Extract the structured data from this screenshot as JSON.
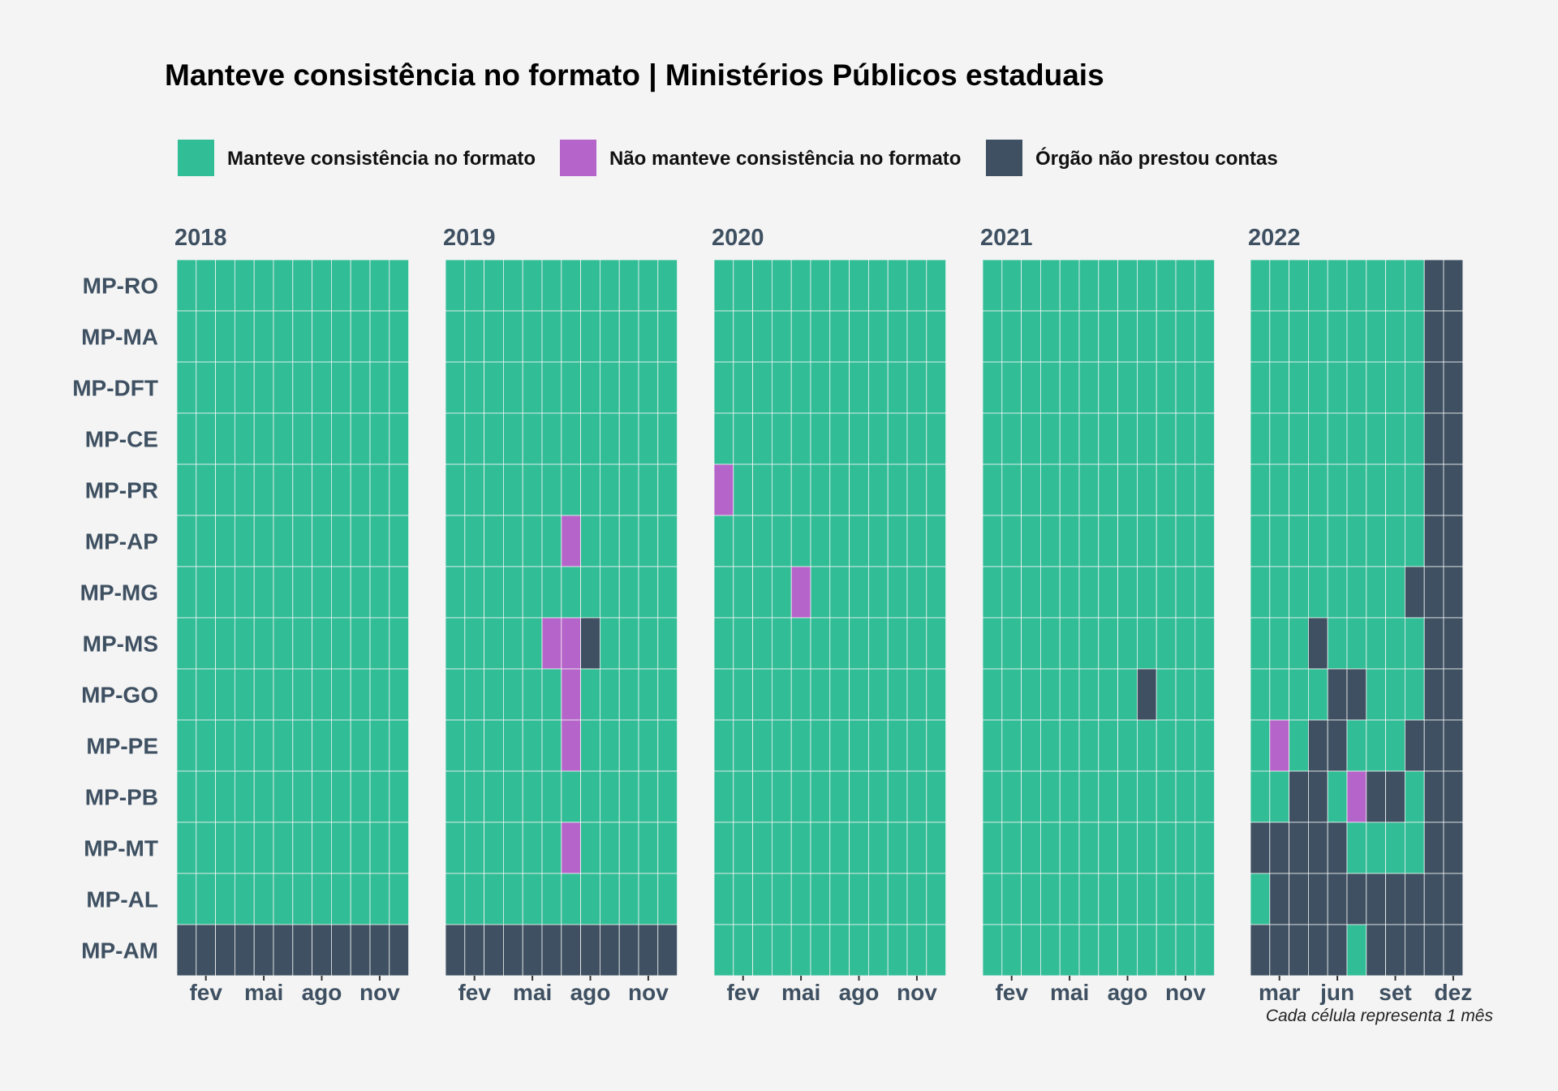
{
  "colors": {
    "background": "#f4f4f4",
    "status_0": "#31bd96",
    "status_1": "#b564c9",
    "status_2": "#3e5061",
    "axis_text": "#3e5061",
    "cell_border": "#f4f4f4"
  },
  "legend": [
    {
      "label": "Manteve consistência no formato",
      "color": "#31bd96"
    },
    {
      "label": "Não manteve consistência no formato",
      "color": "#b564c9"
    },
    {
      "label": "Órgão não prestou contas",
      "color": "#3e5061"
    }
  ],
  "caption": "Cada célula representa 1 mês",
  "chart_data": {
    "type": "heatmap",
    "title": "Manteve consistência no formato | Ministérios Públicos estaduais",
    "status_labels": [
      "Manteve consistência no formato",
      "Não manteve consistência no formato",
      "Órgão não prestou contas"
    ],
    "rows": [
      "MP-RO",
      "MP-MA",
      "MP-DFT",
      "MP-CE",
      "MP-PR",
      "MP-AP",
      "MP-MG",
      "MP-MS",
      "MP-GO",
      "MP-PE",
      "MP-PB",
      "MP-MT",
      "MP-AL",
      "MP-AM"
    ],
    "panels": [
      {
        "year": "2018",
        "tick_labels": [
          "fev",
          "mai",
          "ago",
          "nov"
        ],
        "tick_months": [
          2,
          5,
          8,
          11
        ],
        "matrix": [
          [
            0,
            0,
            0,
            0,
            0,
            0,
            0,
            0,
            0,
            0,
            0,
            0
          ],
          [
            0,
            0,
            0,
            0,
            0,
            0,
            0,
            0,
            0,
            0,
            0,
            0
          ],
          [
            0,
            0,
            0,
            0,
            0,
            0,
            0,
            0,
            0,
            0,
            0,
            0
          ],
          [
            0,
            0,
            0,
            0,
            0,
            0,
            0,
            0,
            0,
            0,
            0,
            0
          ],
          [
            0,
            0,
            0,
            0,
            0,
            0,
            0,
            0,
            0,
            0,
            0,
            0
          ],
          [
            0,
            0,
            0,
            0,
            0,
            0,
            0,
            0,
            0,
            0,
            0,
            0
          ],
          [
            0,
            0,
            0,
            0,
            0,
            0,
            0,
            0,
            0,
            0,
            0,
            0
          ],
          [
            0,
            0,
            0,
            0,
            0,
            0,
            0,
            0,
            0,
            0,
            0,
            0
          ],
          [
            0,
            0,
            0,
            0,
            0,
            0,
            0,
            0,
            0,
            0,
            0,
            0
          ],
          [
            0,
            0,
            0,
            0,
            0,
            0,
            0,
            0,
            0,
            0,
            0,
            0
          ],
          [
            0,
            0,
            0,
            0,
            0,
            0,
            0,
            0,
            0,
            0,
            0,
            0
          ],
          [
            0,
            0,
            0,
            0,
            0,
            0,
            0,
            0,
            0,
            0,
            0,
            0
          ],
          [
            0,
            0,
            0,
            0,
            0,
            0,
            0,
            0,
            0,
            0,
            0,
            0
          ],
          [
            2,
            2,
            2,
            2,
            2,
            2,
            2,
            2,
            2,
            2,
            2,
            2
          ]
        ]
      },
      {
        "year": "2019",
        "tick_labels": [
          "fev",
          "mai",
          "ago",
          "nov"
        ],
        "tick_months": [
          2,
          5,
          8,
          11
        ],
        "matrix": [
          [
            0,
            0,
            0,
            0,
            0,
            0,
            0,
            0,
            0,
            0,
            0,
            0
          ],
          [
            0,
            0,
            0,
            0,
            0,
            0,
            0,
            0,
            0,
            0,
            0,
            0
          ],
          [
            0,
            0,
            0,
            0,
            0,
            0,
            0,
            0,
            0,
            0,
            0,
            0
          ],
          [
            0,
            0,
            0,
            0,
            0,
            0,
            0,
            0,
            0,
            0,
            0,
            0
          ],
          [
            0,
            0,
            0,
            0,
            0,
            0,
            0,
            0,
            0,
            0,
            0,
            0
          ],
          [
            0,
            0,
            0,
            0,
            0,
            0,
            1,
            0,
            0,
            0,
            0,
            0
          ],
          [
            0,
            0,
            0,
            0,
            0,
            0,
            0,
            0,
            0,
            0,
            0,
            0
          ],
          [
            0,
            0,
            0,
            0,
            0,
            1,
            1,
            2,
            0,
            0,
            0,
            0
          ],
          [
            0,
            0,
            0,
            0,
            0,
            0,
            1,
            0,
            0,
            0,
            0,
            0
          ],
          [
            0,
            0,
            0,
            0,
            0,
            0,
            1,
            0,
            0,
            0,
            0,
            0
          ],
          [
            0,
            0,
            0,
            0,
            0,
            0,
            0,
            0,
            0,
            0,
            0,
            0
          ],
          [
            0,
            0,
            0,
            0,
            0,
            0,
            1,
            0,
            0,
            0,
            0,
            0
          ],
          [
            0,
            0,
            0,
            0,
            0,
            0,
            0,
            0,
            0,
            0,
            0,
            0
          ],
          [
            2,
            2,
            2,
            2,
            2,
            2,
            2,
            2,
            2,
            2,
            2,
            2
          ]
        ]
      },
      {
        "year": "2020",
        "tick_labels": [
          "fev",
          "mai",
          "ago",
          "nov"
        ],
        "tick_months": [
          2,
          5,
          8,
          11
        ],
        "matrix": [
          [
            0,
            0,
            0,
            0,
            0,
            0,
            0,
            0,
            0,
            0,
            0,
            0
          ],
          [
            0,
            0,
            0,
            0,
            0,
            0,
            0,
            0,
            0,
            0,
            0,
            0
          ],
          [
            0,
            0,
            0,
            0,
            0,
            0,
            0,
            0,
            0,
            0,
            0,
            0
          ],
          [
            0,
            0,
            0,
            0,
            0,
            0,
            0,
            0,
            0,
            0,
            0,
            0
          ],
          [
            1,
            0,
            0,
            0,
            0,
            0,
            0,
            0,
            0,
            0,
            0,
            0
          ],
          [
            0,
            0,
            0,
            0,
            0,
            0,
            0,
            0,
            0,
            0,
            0,
            0
          ],
          [
            0,
            0,
            0,
            0,
            1,
            0,
            0,
            0,
            0,
            0,
            0,
            0
          ],
          [
            0,
            0,
            0,
            0,
            0,
            0,
            0,
            0,
            0,
            0,
            0,
            0
          ],
          [
            0,
            0,
            0,
            0,
            0,
            0,
            0,
            0,
            0,
            0,
            0,
            0
          ],
          [
            0,
            0,
            0,
            0,
            0,
            0,
            0,
            0,
            0,
            0,
            0,
            0
          ],
          [
            0,
            0,
            0,
            0,
            0,
            0,
            0,
            0,
            0,
            0,
            0,
            0
          ],
          [
            0,
            0,
            0,
            0,
            0,
            0,
            0,
            0,
            0,
            0,
            0,
            0
          ],
          [
            0,
            0,
            0,
            0,
            0,
            0,
            0,
            0,
            0,
            0,
            0,
            0
          ],
          [
            0,
            0,
            0,
            0,
            0,
            0,
            0,
            0,
            0,
            0,
            0,
            0
          ]
        ]
      },
      {
        "year": "2021",
        "tick_labels": [
          "fev",
          "mai",
          "ago",
          "nov"
        ],
        "tick_months": [
          2,
          5,
          8,
          11
        ],
        "matrix": [
          [
            0,
            0,
            0,
            0,
            0,
            0,
            0,
            0,
            0,
            0,
            0,
            0
          ],
          [
            0,
            0,
            0,
            0,
            0,
            0,
            0,
            0,
            0,
            0,
            0,
            0
          ],
          [
            0,
            0,
            0,
            0,
            0,
            0,
            0,
            0,
            0,
            0,
            0,
            0
          ],
          [
            0,
            0,
            0,
            0,
            0,
            0,
            0,
            0,
            0,
            0,
            0,
            0
          ],
          [
            0,
            0,
            0,
            0,
            0,
            0,
            0,
            0,
            0,
            0,
            0,
            0
          ],
          [
            0,
            0,
            0,
            0,
            0,
            0,
            0,
            0,
            0,
            0,
            0,
            0
          ],
          [
            0,
            0,
            0,
            0,
            0,
            0,
            0,
            0,
            0,
            0,
            0,
            0
          ],
          [
            0,
            0,
            0,
            0,
            0,
            0,
            0,
            0,
            0,
            0,
            0,
            0
          ],
          [
            0,
            0,
            0,
            0,
            0,
            0,
            0,
            0,
            2,
            0,
            0,
            0
          ],
          [
            0,
            0,
            0,
            0,
            0,
            0,
            0,
            0,
            0,
            0,
            0,
            0
          ],
          [
            0,
            0,
            0,
            0,
            0,
            0,
            0,
            0,
            0,
            0,
            0,
            0
          ],
          [
            0,
            0,
            0,
            0,
            0,
            0,
            0,
            0,
            0,
            0,
            0,
            0
          ],
          [
            0,
            0,
            0,
            0,
            0,
            0,
            0,
            0,
            0,
            0,
            0,
            0
          ],
          [
            0,
            0,
            0,
            0,
            0,
            0,
            0,
            0,
            0,
            0,
            0,
            0
          ]
        ]
      },
      {
        "year": "2022",
        "tick_labels": [
          "mar",
          "jun",
          "set",
          "dez"
        ],
        "tick_months": [
          3,
          6,
          9,
          12
        ],
        "matrix": [
          [
            0,
            0,
            0,
            0,
            0,
            0,
            0,
            0,
            0,
            2,
            2
          ],
          [
            0,
            0,
            0,
            0,
            0,
            0,
            0,
            0,
            0,
            2,
            2
          ],
          [
            0,
            0,
            0,
            0,
            0,
            0,
            0,
            0,
            0,
            2,
            2
          ],
          [
            0,
            0,
            0,
            0,
            0,
            0,
            0,
            0,
            0,
            2,
            2
          ],
          [
            0,
            0,
            0,
            0,
            0,
            0,
            0,
            0,
            0,
            2,
            2
          ],
          [
            0,
            0,
            0,
            0,
            0,
            0,
            0,
            0,
            0,
            2,
            2
          ],
          [
            0,
            0,
            0,
            0,
            0,
            0,
            0,
            0,
            2,
            2,
            2
          ],
          [
            0,
            0,
            0,
            2,
            0,
            0,
            0,
            0,
            0,
            2,
            2
          ],
          [
            0,
            0,
            0,
            0,
            2,
            2,
            0,
            0,
            0,
            2,
            2
          ],
          [
            0,
            1,
            0,
            2,
            2,
            0,
            0,
            0,
            2,
            2,
            2
          ],
          [
            0,
            0,
            2,
            2,
            0,
            1,
            2,
            2,
            0,
            2,
            2
          ],
          [
            2,
            2,
            2,
            2,
            2,
            0,
            0,
            0,
            0,
            2,
            2
          ],
          [
            0,
            2,
            2,
            2,
            2,
            2,
            2,
            2,
            2,
            2,
            2
          ],
          [
            2,
            2,
            2,
            2,
            2,
            0,
            2,
            2,
            2,
            2,
            2
          ]
        ]
      }
    ]
  }
}
